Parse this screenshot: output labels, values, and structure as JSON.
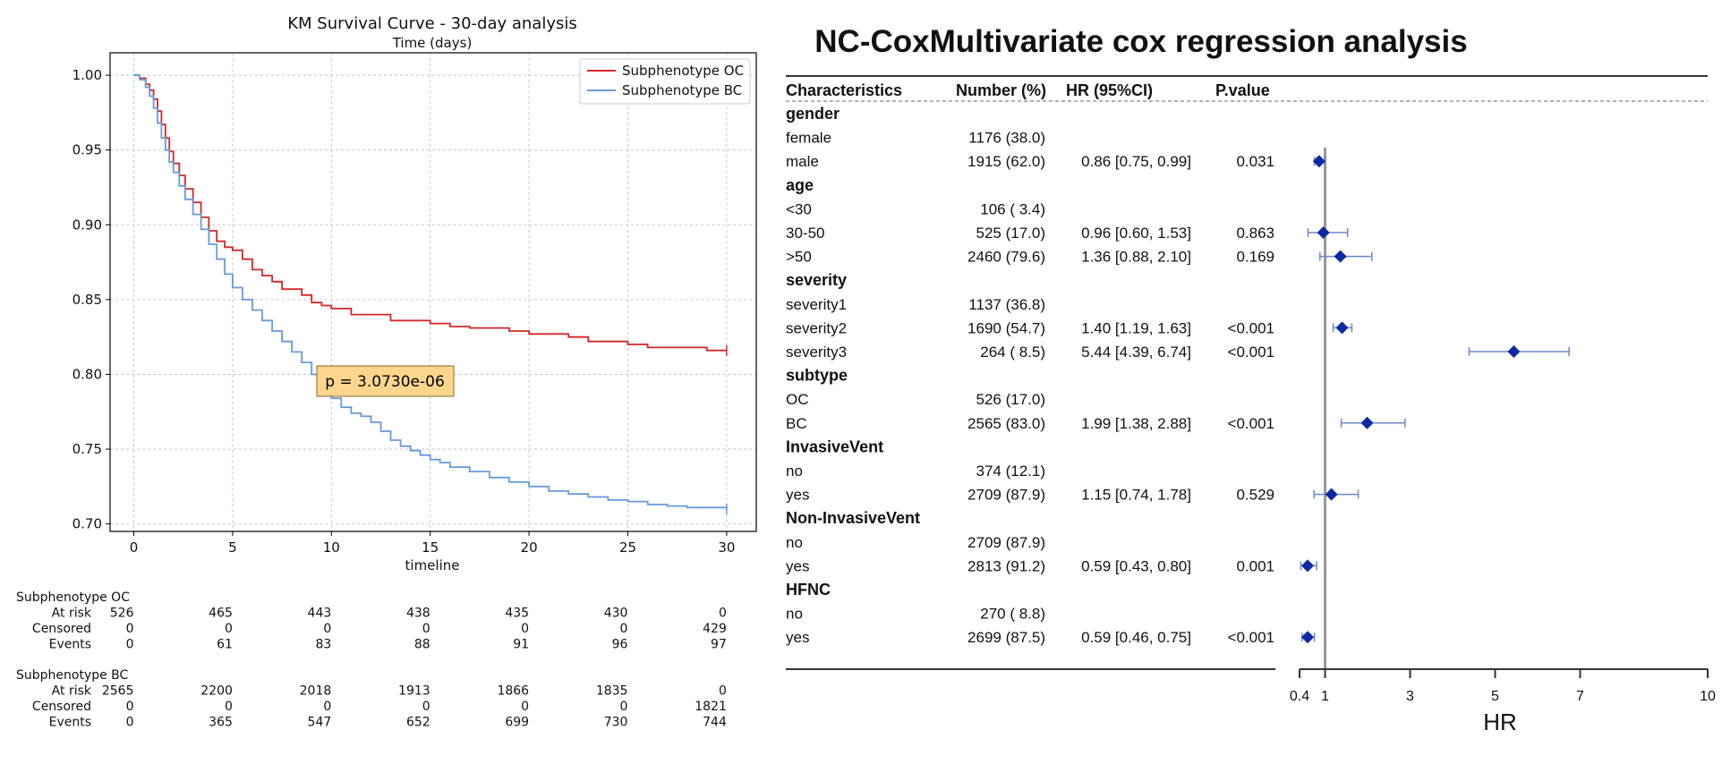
{
  "chart_data": [
    {
      "type": "line",
      "title": "KM Survival Curve - 30-day analysis",
      "subtitle": "Time (days)",
      "xlabel": "timeline",
      "ylabel": "",
      "xlim": [
        -1.2,
        31.5
      ],
      "ylim": [
        0.695,
        1.015
      ],
      "xticks": [
        0,
        5,
        10,
        15,
        20,
        25,
        30
      ],
      "yticks": [
        0.7,
        0.75,
        0.8,
        0.85,
        0.9,
        0.95,
        1.0
      ],
      "ytick_labels": [
        "0.70",
        "0.75",
        "0.80",
        "0.85",
        "0.90",
        "0.95",
        "1.00"
      ],
      "grid": true,
      "legend_position": "top-right",
      "annotation": "p = 3.0730e-06",
      "annotation_color": "#fdd58c",
      "series": [
        {
          "name": "Subphenotype OC",
          "color": "#d62728",
          "x": [
            0,
            0.3,
            0.6,
            0.8,
            1.0,
            1.2,
            1.4,
            1.6,
            1.8,
            2.0,
            2.3,
            2.6,
            3.0,
            3.4,
            3.8,
            4.2,
            4.6,
            5.0,
            5.5,
            6.0,
            6.5,
            7.0,
            7.5,
            8.0,
            8.5,
            9.0,
            9.5,
            10.0,
            11.0,
            12.0,
            13.0,
            14.0,
            15.0,
            16.0,
            17.0,
            18.0,
            19.0,
            20.0,
            21.0,
            22.0,
            23.0,
            24.0,
            25.0,
            26.0,
            27.0,
            28.0,
            29.0,
            30.0
          ],
          "y": [
            1.0,
            0.998,
            0.994,
            0.99,
            0.984,
            0.976,
            0.967,
            0.958,
            0.949,
            0.941,
            0.933,
            0.924,
            0.915,
            0.905,
            0.896,
            0.889,
            0.885,
            0.883,
            0.877,
            0.87,
            0.866,
            0.862,
            0.857,
            0.857,
            0.853,
            0.848,
            0.846,
            0.844,
            0.84,
            0.84,
            0.836,
            0.836,
            0.834,
            0.832,
            0.831,
            0.831,
            0.829,
            0.827,
            0.827,
            0.825,
            0.822,
            0.822,
            0.82,
            0.818,
            0.818,
            0.818,
            0.816,
            0.816
          ]
        },
        {
          "name": "Subphenotype BC",
          "color": "#6699dd",
          "x": [
            0,
            0.3,
            0.6,
            0.8,
            1.0,
            1.2,
            1.4,
            1.6,
            1.8,
            2.0,
            2.3,
            2.6,
            3.0,
            3.4,
            3.8,
            4.2,
            4.6,
            5.0,
            5.5,
            6.0,
            6.5,
            7.0,
            7.5,
            8.0,
            8.5,
            9.0,
            9.5,
            10.0,
            10.5,
            11.0,
            11.5,
            12.0,
            12.5,
            13.0,
            13.5,
            14.0,
            14.5,
            15.0,
            15.5,
            16.0,
            17.0,
            18.0,
            19.0,
            20.0,
            21.0,
            22.0,
            23.0,
            24.0,
            25.0,
            26.0,
            27.0,
            28.0,
            29.0,
            30.0
          ],
          "y": [
            1.0,
            0.997,
            0.992,
            0.986,
            0.978,
            0.968,
            0.958,
            0.95,
            0.942,
            0.935,
            0.926,
            0.917,
            0.907,
            0.897,
            0.887,
            0.877,
            0.867,
            0.858,
            0.85,
            0.843,
            0.836,
            0.829,
            0.822,
            0.815,
            0.808,
            0.8,
            0.792,
            0.784,
            0.778,
            0.774,
            0.772,
            0.768,
            0.762,
            0.756,
            0.752,
            0.749,
            0.746,
            0.743,
            0.741,
            0.738,
            0.735,
            0.731,
            0.728,
            0.725,
            0.722,
            0.72,
            0.718,
            0.716,
            0.715,
            0.713,
            0.712,
            0.711,
            0.711,
            0.71
          ]
        }
      ],
      "risk_table": [
        {
          "group": "Subphenotype OC",
          "rows": [
            {
              "label": "At risk",
              "values": [
                "526",
                "465",
                "443",
                "438",
                "435",
                "430",
                "0"
              ]
            },
            {
              "label": "Censored",
              "values": [
                "0",
                "0",
                "0",
                "0",
                "0",
                "0",
                "429"
              ]
            },
            {
              "label": "Events",
              "values": [
                "0",
                "61",
                "83",
                "88",
                "91",
                "96",
                "97"
              ]
            }
          ]
        },
        {
          "group": "Subphenotype BC",
          "rows": [
            {
              "label": "At risk",
              "values": [
                "2565",
                "2200",
                "2018",
                "1913",
                "1866",
                "1835",
                "0"
              ]
            },
            {
              "label": "Censored",
              "values": [
                "0",
                "0",
                "0",
                "0",
                "0",
                "0",
                "1821"
              ]
            },
            {
              "label": "Events",
              "values": [
                "0",
                "365",
                "547",
                "652",
                "699",
                "730",
                "744"
              ]
            }
          ]
        }
      ]
    },
    {
      "type": "table",
      "title": "NC-CoxMultivariate cox regression analysis",
      "columns": [
        "Characteristics",
        "Number (%)",
        "HR (95%CI)",
        "P.value"
      ],
      "xlabel": "HR",
      "xticks": [
        0.4,
        1,
        3,
        5,
        7,
        10
      ],
      "xlim": [
        0.4,
        10
      ],
      "reference_line": 1,
      "marker_color": "#0d2aa3",
      "ci_color": "#6f87c6",
      "rows": [
        {
          "label": "gender",
          "group": true
        },
        {
          "label": "female",
          "number": "1176 (38.0)",
          "hr_text": "",
          "p": ""
        },
        {
          "label": "male",
          "number": "1915 (62.0)",
          "hr_text": "0.86 [0.75, 0.99]",
          "p": "0.031",
          "hr": 0.86,
          "lo": 0.75,
          "hi": 0.99
        },
        {
          "label": "age",
          "group": true
        },
        {
          "label": "<30",
          "number": "106 ( 3.4)",
          "hr_text": "",
          "p": ""
        },
        {
          "label": "30-50",
          "number": "525 (17.0)",
          "hr_text": "0.96 [0.60, 1.53]",
          "p": "0.863",
          "hr": 0.96,
          "lo": 0.6,
          "hi": 1.53
        },
        {
          "label": ">50",
          "number": "2460 (79.6)",
          "hr_text": "1.36 [0.88, 2.10]",
          "p": "0.169",
          "hr": 1.36,
          "lo": 0.88,
          "hi": 2.1
        },
        {
          "label": "severity",
          "group": true
        },
        {
          "label": "severity1",
          "number": "1137 (36.8)",
          "hr_text": "",
          "p": ""
        },
        {
          "label": "severity2",
          "number": "1690 (54.7)",
          "hr_text": "1.40 [1.19, 1.63]",
          "p": "<0.001",
          "hr": 1.4,
          "lo": 1.19,
          "hi": 1.63
        },
        {
          "label": "severity3",
          "number": "264 ( 8.5)",
          "hr_text": "5.44 [4.39, 6.74]",
          "p": "<0.001",
          "hr": 5.44,
          "lo": 4.39,
          "hi": 6.74
        },
        {
          "label": "subtype",
          "group": true
        },
        {
          "label": "OC",
          "number": "526 (17.0)",
          "hr_text": "",
          "p": ""
        },
        {
          "label": "BC",
          "number": "2565 (83.0)",
          "hr_text": "1.99 [1.38, 2.88]",
          "p": "<0.001",
          "hr": 1.99,
          "lo": 1.38,
          "hi": 2.88
        },
        {
          "label": "InvasiveVent",
          "group": true
        },
        {
          "label": "no",
          "number": "374 (12.1)",
          "hr_text": "",
          "p": ""
        },
        {
          "label": "yes",
          "number": "2709 (87.9)",
          "hr_text": "1.15 [0.74, 1.78]",
          "p": "0.529",
          "hr": 1.15,
          "lo": 0.74,
          "hi": 1.78
        },
        {
          "label": "Non-InvasiveVent",
          "group": true
        },
        {
          "label": "no",
          "number": "2709 (87.9)",
          "hr_text": "",
          "p": ""
        },
        {
          "label": "yes",
          "number": "2813 (91.2)",
          "hr_text": "0.59 [0.43, 0.80]",
          "p": "0.001",
          "hr": 0.59,
          "lo": 0.43,
          "hi": 0.8
        },
        {
          "label": "HFNC",
          "group": true
        },
        {
          "label": "no",
          "number": "270 ( 8.8)",
          "hr_text": "",
          "p": ""
        },
        {
          "label": "yes",
          "number": "2699 (87.5)",
          "hr_text": "0.59 [0.46, 0.75]",
          "p": "<0.001",
          "hr": 0.59,
          "lo": 0.46,
          "hi": 0.75
        }
      ]
    }
  ]
}
